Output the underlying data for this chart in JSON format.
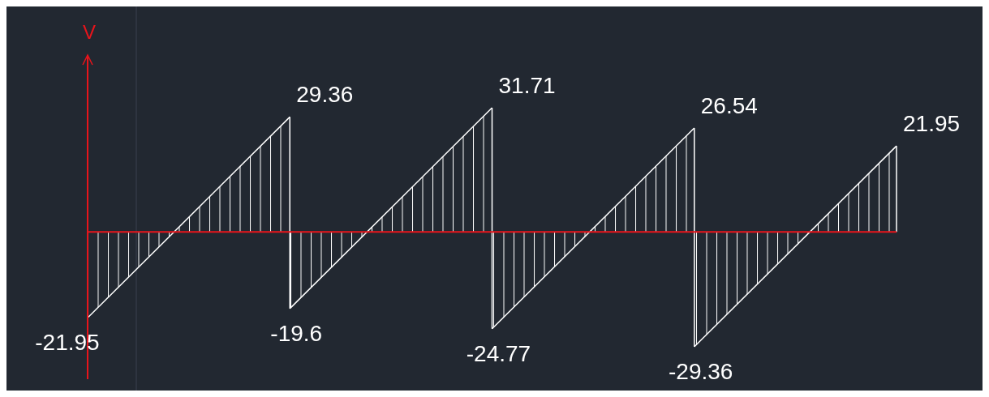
{
  "chart_data": {
    "type": "line",
    "ylabel": "V",
    "grid": "x",
    "ref_lines": [
      {
        "axis": "y",
        "value": 0,
        "color": "#e8141b"
      }
    ],
    "categories": [
      null,
      null,
      null,
      null,
      null
    ],
    "series": [
      {
        "color": "#ffffff",
        "values": [
          -21.95,
          29.36,
          null,
          null,
          null
        ],
        "value_labels": [
          "-21.95",
          "29.36",
          null,
          null,
          null
        ]
      },
      {
        "color": "#ffffff",
        "values": [
          null,
          -19.6,
          31.71,
          null,
          null
        ],
        "value_labels": [
          null,
          "-19.6",
          "31.71",
          null,
          null
        ]
      },
      {
        "color": "#ffffff",
        "values": [
          null,
          null,
          -24.77,
          26.54,
          null
        ],
        "value_labels": [
          null,
          null,
          "-24.77",
          "26.54",
          null
        ]
      },
      {
        "color": "#ffffff",
        "values": [
          null,
          null,
          null,
          -29.36,
          21.95
        ],
        "value_labels": [
          null,
          null,
          null,
          "-29.36",
          "21.95"
        ]
      }
    ]
  }
}
